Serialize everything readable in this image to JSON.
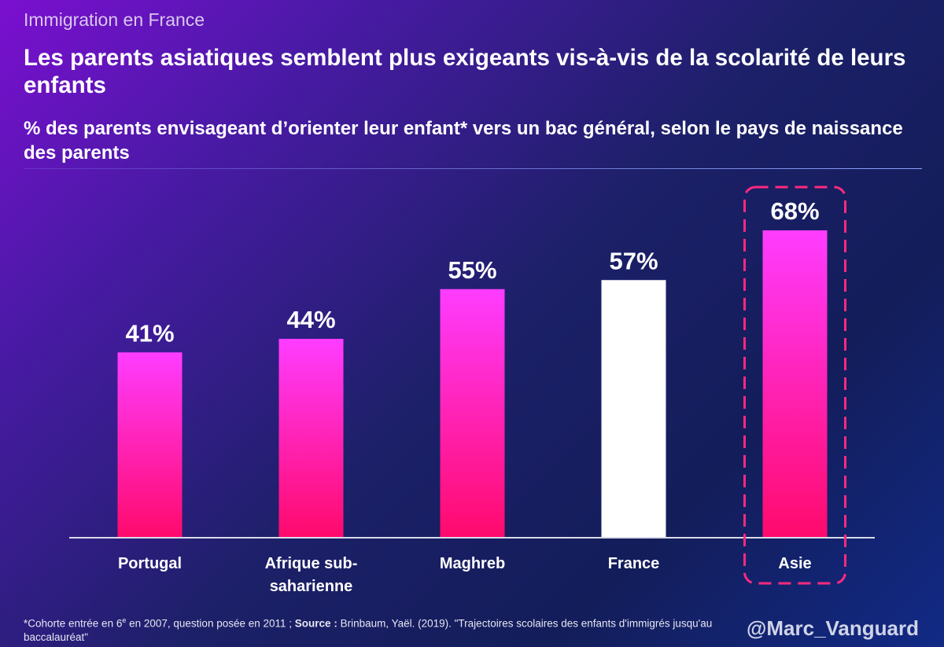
{
  "header": {
    "supertitle": "Immigration en France",
    "title": "Les parents asiatiques semblent plus exigeants vis-à-vis de la scolarité de leurs enfants",
    "subtitle": "% des parents envisageant d’orienter leur enfant* vers un bac général, selon le pays de naissance des parents"
  },
  "chart_data": {
    "type": "bar",
    "title": "% des parents envisageant d’orienter leur enfant* vers un bac général, selon le pays de naissance des parents",
    "categories": [
      "Portugal",
      "Afrique sub-saharienne",
      "Maghreb",
      "France",
      "Asie"
    ],
    "category_lines": [
      [
        "Portugal"
      ],
      [
        "Afrique sub-",
        "saharienne"
      ],
      [
        "Maghreb"
      ],
      [
        "France"
      ],
      [
        "Asie"
      ]
    ],
    "values": [
      41,
      44,
      55,
      57,
      68
    ],
    "data_labels": [
      "41%",
      "44%",
      "55%",
      "57%",
      "68%"
    ],
    "unit": "%",
    "xlabel": "",
    "ylabel": "",
    "ylim": [
      0,
      100
    ],
    "grid": false,
    "highlighted_category": "Asie",
    "colors": {
      "bar_top": "#ff3cff",
      "bar_bottom": "#ff0a6c",
      "reference_bar": "#ffffff",
      "highlight_frame": "#ff2a7f",
      "axis": "#d8dbe8"
    }
  },
  "footer": {
    "footnote_star": "*Cohorte entrée en 6",
    "footnote_sup": "e",
    "footnote_mid": " en 2007, question posée en 2011 ; ",
    "footnote_source_label": "Source :",
    "footnote_source_text": " Brinbaum, Yaël. (2019). \"Trajectoires scolaires des enfants d'immigrés jusqu'au baccalauréat\"",
    "handle": "@Marc_Vanguard"
  }
}
